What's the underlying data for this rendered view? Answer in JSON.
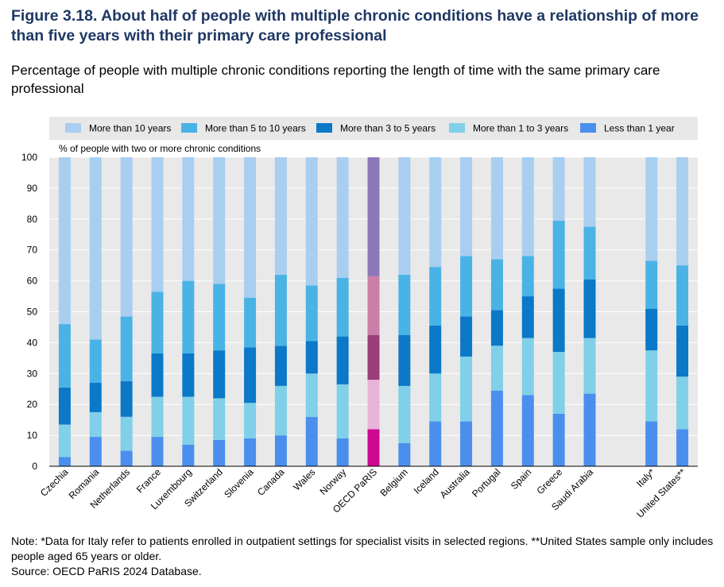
{
  "figure": {
    "title": "Figure 3.18. About half of people with multiple chronic conditions have a relationship of more than five years with their primary care professional",
    "subtitle": "Percentage of people with multiple chronic conditions reporting the length of time with the same primary care professional",
    "note": "Note: *Data for Italy refer to patients enrolled in outpatient settings for specialist visits in selected regions. **United States sample only includes people aged 65 years or older.",
    "source": "Source: OECD PaRIS 2024 Database."
  },
  "colors": {
    "series": [
      "#4a8fed",
      "#7fd0e8",
      "#0b78c8",
      "#4ab3e6",
      "#a9cef0"
    ],
    "highlight": [
      "#cc0a8f",
      "#e8b4d8",
      "#9b3d78",
      "#c97fa8",
      "#8c78b8"
    ],
    "legend_bg": "#e8e8e8",
    "grid": "#ffffff",
    "plot_bg": "#e9e9e9"
  },
  "chart_data": {
    "type": "bar",
    "stacked": true,
    "title": "",
    "ylabel": "% of people with two or more chronic conditions",
    "ylim": [
      0,
      100
    ],
    "yticks": [
      0,
      10,
      20,
      30,
      40,
      50,
      60,
      70,
      80,
      90,
      100
    ],
    "legend_position": "top",
    "categories": [
      "Czechia",
      "Romania",
      "Netherlands",
      "France",
      "Luxembourg",
      "Switzerland",
      "Slovenia",
      "Canada",
      "Wales",
      "Norway",
      "OECD PaRIS",
      "Belgium",
      "Iceland",
      "Australia",
      "Portugal",
      "Spain",
      "Greece",
      "Saudi Arabia",
      "",
      "Italy*",
      "United States**"
    ],
    "highlight_category": "OECD PaRIS",
    "legend_order": [
      4,
      3,
      2,
      1,
      0
    ],
    "series": [
      {
        "name": "Less than 1 year",
        "values": [
          3,
          9.5,
          5,
          9.5,
          7,
          8.5,
          9,
          10,
          16,
          9,
          12,
          7.5,
          14.5,
          14.5,
          24.5,
          23,
          17,
          23.5,
          null,
          14.5,
          12
        ]
      },
      {
        "name": "More than 1 to 3 years",
        "values": [
          10.5,
          8,
          11,
          13,
          15.5,
          13.5,
          11.5,
          16,
          14,
          17.5,
          16,
          18.5,
          15.5,
          21,
          14.5,
          18.5,
          20,
          18,
          null,
          23,
          17
        ]
      },
      {
        "name": "More than 3 to 5 years",
        "values": [
          12,
          9.5,
          11.5,
          14,
          14,
          15.5,
          18,
          13,
          10.5,
          15.5,
          14.5,
          16.5,
          15.5,
          13,
          11.5,
          13.5,
          20.5,
          19,
          null,
          13.5,
          16.5
        ]
      },
      {
        "name": "More than 5 to 10 years",
        "values": [
          20.5,
          14,
          21,
          20,
          23.5,
          21.5,
          16,
          23,
          18,
          19,
          19,
          19.5,
          19,
          19.5,
          16.5,
          13,
          22,
          17,
          null,
          15.5,
          19.5
        ]
      },
      {
        "name": "More than 10 years",
        "values": [
          54,
          59,
          51.5,
          43.5,
          40,
          41,
          45.5,
          38,
          41.5,
          39,
          38.5,
          38,
          35.5,
          32,
          33,
          32,
          20.5,
          22.5,
          null,
          33.5,
          35
        ]
      }
    ]
  }
}
